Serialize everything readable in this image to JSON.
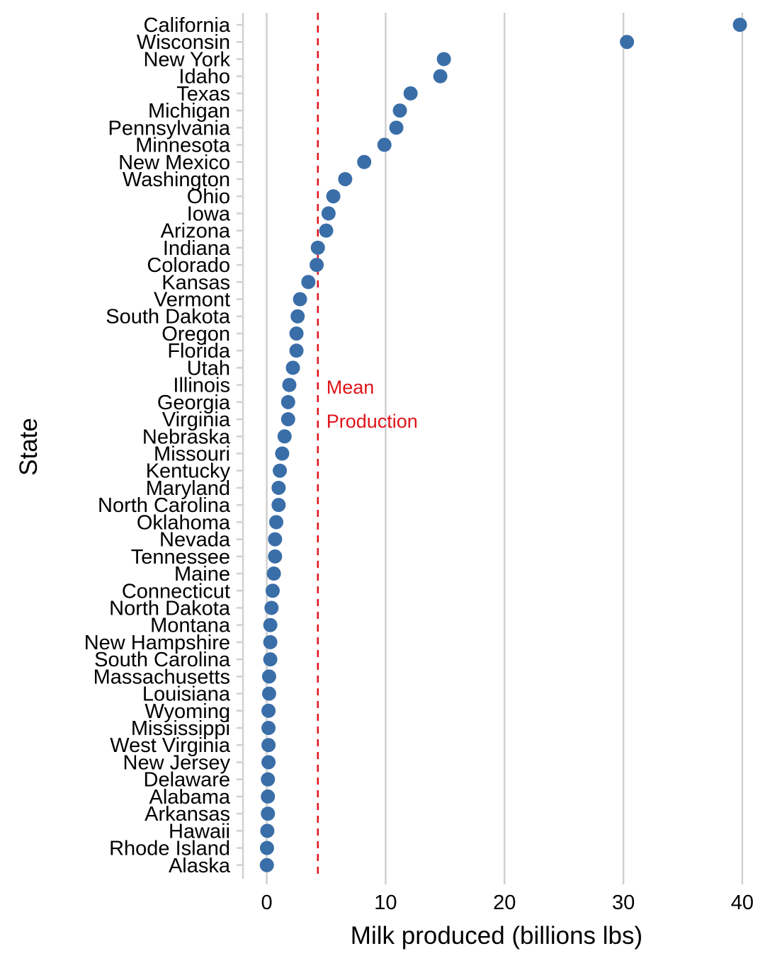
{
  "chart_data": {
    "type": "scatter",
    "xlabel": "Milk produced (billions lbs)",
    "ylabel": "State",
    "xlim": [
      -2,
      40.6
    ],
    "x_ticks": [
      0,
      10,
      20,
      30,
      40
    ],
    "grid": "vertical major gridlines at x ticks",
    "legend": "none",
    "point_color": "#3a6ea8",
    "mean_line": {
      "value": 4.3,
      "color": "#e0141b",
      "style": "dashed",
      "label_lines": [
        "Mean",
        "Production"
      ]
    },
    "points": [
      {
        "state": "California",
        "value": 39.8
      },
      {
        "state": "Wisconsin",
        "value": 30.3
      },
      {
        "state": "New York",
        "value": 14.9
      },
      {
        "state": "Idaho",
        "value": 14.6
      },
      {
        "state": "Texas",
        "value": 12.1
      },
      {
        "state": "Michigan",
        "value": 11.2
      },
      {
        "state": "Pennsylvania",
        "value": 10.9
      },
      {
        "state": "Minnesota",
        "value": 9.9
      },
      {
        "state": "New Mexico",
        "value": 8.2
      },
      {
        "state": "Washington",
        "value": 6.6
      },
      {
        "state": "Ohio",
        "value": 5.6
      },
      {
        "state": "Iowa",
        "value": 5.2
      },
      {
        "state": "Arizona",
        "value": 5.0
      },
      {
        "state": "Indiana",
        "value": 4.3
      },
      {
        "state": "Colorado",
        "value": 4.2
      },
      {
        "state": "Kansas",
        "value": 3.5
      },
      {
        "state": "Vermont",
        "value": 2.8
      },
      {
        "state": "South Dakota",
        "value": 2.6
      },
      {
        "state": "Oregon",
        "value": 2.5
      },
      {
        "state": "Florida",
        "value": 2.5
      },
      {
        "state": "Utah",
        "value": 2.2
      },
      {
        "state": "Illinois",
        "value": 1.9
      },
      {
        "state": "Georgia",
        "value": 1.8
      },
      {
        "state": "Virginia",
        "value": 1.8
      },
      {
        "state": "Nebraska",
        "value": 1.5
      },
      {
        "state": "Missouri",
        "value": 1.3
      },
      {
        "state": "Kentucky",
        "value": 1.1
      },
      {
        "state": "Maryland",
        "value": 1.0
      },
      {
        "state": "North Carolina",
        "value": 1.0
      },
      {
        "state": "Oklahoma",
        "value": 0.8
      },
      {
        "state": "Nevada",
        "value": 0.7
      },
      {
        "state": "Tennessee",
        "value": 0.7
      },
      {
        "state": "Maine",
        "value": 0.6
      },
      {
        "state": "Connecticut",
        "value": 0.5
      },
      {
        "state": "North Dakota",
        "value": 0.4
      },
      {
        "state": "Montana",
        "value": 0.3
      },
      {
        "state": "New Hampshire",
        "value": 0.3
      },
      {
        "state": "South Carolina",
        "value": 0.3
      },
      {
        "state": "Massachusetts",
        "value": 0.2
      },
      {
        "state": "Louisiana",
        "value": 0.2
      },
      {
        "state": "Wyoming",
        "value": 0.15
      },
      {
        "state": "Mississippi",
        "value": 0.15
      },
      {
        "state": "West Virginia",
        "value": 0.15
      },
      {
        "state": "New Jersey",
        "value": 0.15
      },
      {
        "state": "Delaware",
        "value": 0.1
      },
      {
        "state": "Alabama",
        "value": 0.1
      },
      {
        "state": "Arkansas",
        "value": 0.1
      },
      {
        "state": "Hawaii",
        "value": 0.05
      },
      {
        "state": "Rhode Island",
        "value": 0.02
      },
      {
        "state": "Alaska",
        "value": 0.01
      }
    ]
  }
}
